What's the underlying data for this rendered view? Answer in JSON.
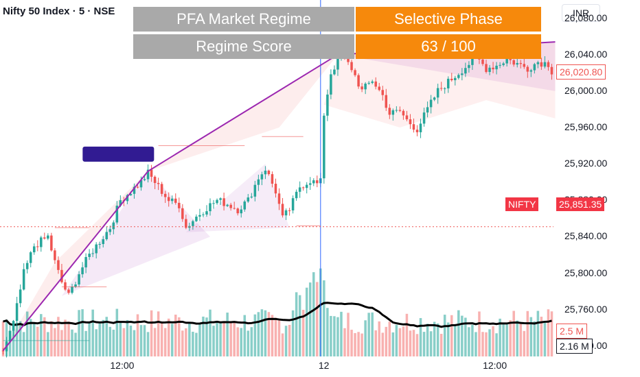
{
  "header": {
    "symbol_title": "Nifty 50 Index · 5 · NSE",
    "currency": "INR"
  },
  "regime_table": {
    "row1_label": "PFA Market Regime",
    "row1_value": "Selective Phase",
    "row2_label": "Regime Score",
    "row2_value": "63 / 100"
  },
  "price_scale": {
    "last_price_label": "26,020.80",
    "nifty_label": "NIFTY",
    "nifty_value": "25,851.35",
    "volume_label": "2.5 M",
    "volume_ma_label": "2.16 M"
  },
  "colors": {
    "up": "#26a69a",
    "down": "#ef5350",
    "trend_line": "#9c27b0",
    "volume_ma": "#000000",
    "crosshair": "#2962ff",
    "label_box": "#311b92",
    "regime_label_bg": "#a9a9a9",
    "regime_value_bg": "#f6890c"
  },
  "chart_data": {
    "type": "candlestick",
    "y_axis": {
      "ticks": [
        "25,720.00",
        "25,760.00",
        "25,800.00",
        "25,840.00",
        "25,880.00",
        "25,920.00",
        "25,960.00",
        "26,000.00",
        "26,040.00",
        "26,080.00"
      ],
      "tick_values": [
        25720,
        25760,
        25800,
        25840,
        25880,
        25920,
        25960,
        26000,
        26040,
        26080
      ],
      "range": [
        25686,
        26100
      ]
    },
    "x_axis": {
      "ticks": [
        "12:00",
        "12",
        "12:00"
      ],
      "tick_positions": [
        35,
        93,
        143
      ]
    },
    "bar_count": 160,
    "ohlc_close_path": [
      [
        0,
        25715
      ],
      [
        3,
        25745
      ],
      [
        6,
        25800
      ],
      [
        9,
        25830
      ],
      [
        13,
        25840
      ],
      [
        15,
        25812
      ],
      [
        17,
        25790
      ],
      [
        19,
        25775
      ],
      [
        22,
        25800
      ],
      [
        25,
        25820
      ],
      [
        28,
        25835
      ],
      [
        31,
        25850
      ],
      [
        34,
        25880
      ],
      [
        37,
        25890
      ],
      [
        40,
        25900
      ],
      [
        42,
        25910
      ],
      [
        45,
        25895
      ],
      [
        48,
        25880
      ],
      [
        51,
        25875
      ],
      [
        53,
        25850
      ],
      [
        56,
        25862
      ],
      [
        59,
        25872
      ],
      [
        62,
        25880
      ],
      [
        65,
        25876
      ],
      [
        68,
        25870
      ],
      [
        71,
        25880
      ],
      [
        74,
        25905
      ],
      [
        76,
        25915
      ],
      [
        79,
        25890
      ],
      [
        81,
        25860
      ],
      [
        83,
        25870
      ],
      [
        86,
        25895
      ],
      [
        89,
        25902
      ],
      [
        91,
        25898
      ],
      [
        92,
        25900
      ],
      [
        93,
        25975
      ],
      [
        95,
        26020
      ],
      [
        98,
        26040
      ],
      [
        101,
        26025
      ],
      [
        104,
        26000
      ],
      [
        107,
        26012
      ],
      [
        110,
        25995
      ],
      [
        112,
        25975
      ],
      [
        115,
        25978
      ],
      [
        117,
        25968
      ],
      [
        120,
        25958
      ],
      [
        123,
        25980
      ],
      [
        126,
        26000
      ],
      [
        129,
        26010
      ],
      [
        132,
        26020
      ],
      [
        135,
        26030
      ],
      [
        137,
        26038
      ],
      [
        140,
        26025
      ],
      [
        143,
        26028
      ],
      [
        146,
        26035
      ],
      [
        149,
        26030
      ],
      [
        152,
        26025
      ],
      [
        155,
        26032
      ],
      [
        158,
        26030
      ],
      [
        159,
        26022
      ]
    ],
    "volume_m": {
      "range": [
        0,
        6
      ],
      "values_shape": "synthetic",
      "ma_last": 2.16,
      "last": 2.5
    },
    "annotations": {
      "trend_points": [
        [
          0,
          25715
        ],
        [
          42,
          25912
        ],
        [
          97,
          26040
        ],
        [
          160,
          26054
        ]
      ],
      "label_box_at": [
        33,
        25930
      ]
    }
  }
}
